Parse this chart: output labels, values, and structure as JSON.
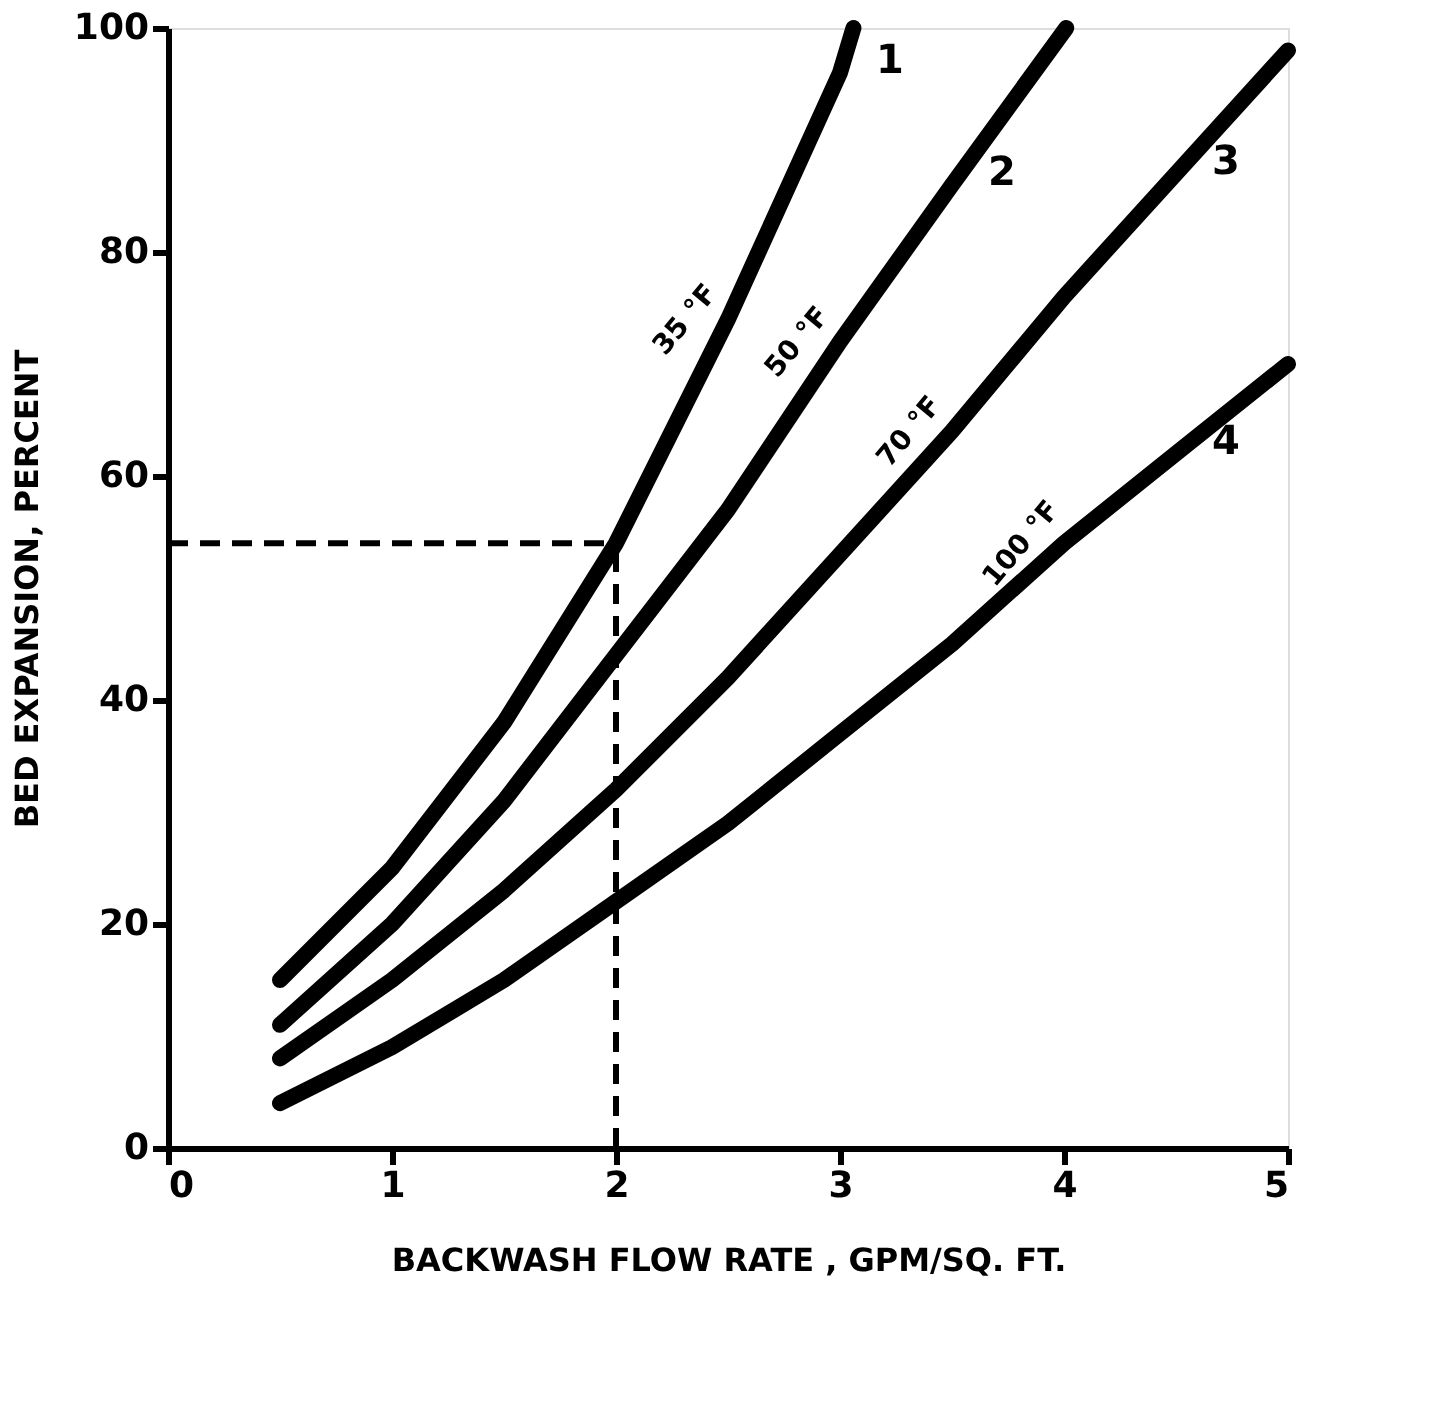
{
  "chart_data": {
    "type": "line",
    "xlabel": "BACKWASH  FLOW  RATE , GPM/SQ. FT.",
    "ylabel": "BED  EXPANSION,  PERCENT",
    "xlim": [
      0,
      5
    ],
    "ylim": [
      0,
      100
    ],
    "xticks": [
      0,
      1,
      2,
      3,
      4,
      5
    ],
    "yticks": [
      0,
      20,
      40,
      60,
      80,
      100
    ],
    "marker": "none",
    "line_style": "solid",
    "series": [
      {
        "name": "1",
        "color": "#000000",
        "x": [
          0.5,
          1,
          1.5,
          2,
          2.5,
          3,
          3.06
        ],
        "values": [
          15,
          25,
          38,
          54,
          74,
          96,
          100
        ]
      },
      {
        "name": "2",
        "color": "#000000",
        "x": [
          0.5,
          1,
          1.5,
          2,
          2.5,
          3,
          3.5,
          4.01
        ],
        "values": [
          11,
          20,
          31,
          44,
          57,
          72,
          86,
          100
        ]
      },
      {
        "name": "3",
        "color": "#000000",
        "x": [
          0.5,
          1,
          1.5,
          2,
          2.5,
          3,
          3.5,
          4,
          4.5,
          5
        ],
        "values": [
          8,
          15,
          23,
          32,
          42,
          53,
          64,
          76,
          87,
          98
        ]
      },
      {
        "name": "4",
        "color": "#000000",
        "x": [
          0.5,
          1,
          1.5,
          2,
          2.5,
          3,
          3.5,
          4,
          4.5,
          5
        ],
        "values": [
          4,
          9,
          15,
          22,
          29,
          37,
          45,
          54,
          62,
          70
        ]
      }
    ],
    "annotations": [
      {
        "text": "35 °F",
        "x": 2.5,
        "y": 74
      },
      {
        "text": "50 °F",
        "x": 3,
        "y": 72
      },
      {
        "text": "70 °F",
        "x": 3.5,
        "y": 64
      },
      {
        "text": "100 °F",
        "x": 4,
        "y": 54
      }
    ],
    "ref_lines": [
      {
        "axis": "x",
        "value": 2,
        "line_style": "dashed",
        "color": "#000000"
      },
      {
        "axis": "y",
        "value": 54,
        "line_style": "dashed",
        "color": "#000000"
      }
    ]
  }
}
